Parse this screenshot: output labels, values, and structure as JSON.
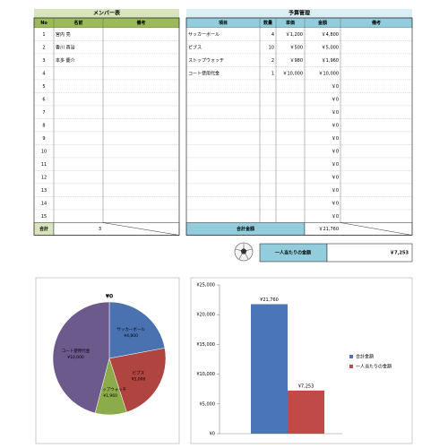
{
  "members": {
    "title": "メンバー表",
    "headers": [
      "No",
      "名前",
      "備考"
    ],
    "rows": [
      {
        "no": 1,
        "name": "宮内 亮"
      },
      {
        "no": 2,
        "name": "香川 真治"
      },
      {
        "no": 3,
        "name": "本多 慶介"
      },
      {
        "no": 4
      },
      {
        "no": 5
      },
      {
        "no": 6
      },
      {
        "no": 7
      },
      {
        "no": 8
      },
      {
        "no": 9
      },
      {
        "no": 10
      },
      {
        "no": 11
      },
      {
        "no": 12
      },
      {
        "no": 13
      },
      {
        "no": 14
      },
      {
        "no": 15
      }
    ],
    "total_label": "合計",
    "total": 3
  },
  "budget": {
    "title": "予算管理",
    "headers": [
      "項目",
      "数量",
      "単価",
      "金額",
      "備考"
    ],
    "rows": [
      {
        "item": "サッカーボール",
        "qty": 4,
        "price": "￥1,200",
        "amount": "￥4,800"
      },
      {
        "item": "ビブス",
        "qty": 10,
        "price": "￥500",
        "amount": "￥5,000"
      },
      {
        "item": "ストップウォッチ",
        "qty": 2,
        "price": "￥980",
        "amount": "￥1,960"
      },
      {
        "item": "コート使用代金",
        "qty": 1,
        "price": "￥10,000",
        "amount": "￥10,000"
      },
      {
        "amount": "￥0"
      },
      {
        "amount": "￥0"
      },
      {
        "amount": "￥0"
      },
      {
        "amount": "￥0"
      },
      {
        "amount": "￥0"
      },
      {
        "amount": "￥0"
      },
      {
        "amount": "￥0"
      },
      {
        "amount": "￥0"
      },
      {
        "amount": "￥0"
      },
      {
        "amount": "￥0"
      },
      {
        "amount": "￥0"
      }
    ],
    "total_label": "合計金額",
    "total": "￥21,760"
  },
  "per_person": {
    "label": "一人当たりの金額",
    "value": "￥7,253"
  },
  "chart_data": [
    {
      "type": "pie",
      "title": "¥0",
      "categories": [
        "サッカーボール",
        "ビブス",
        "ストップウォッチ",
        "コート使用代金"
      ],
      "values": [
        4800,
        5000,
        1960,
        10000
      ],
      "value_labels": [
        "¥4,800",
        "¥5,000",
        "¥1,960",
        "¥10,000"
      ],
      "colors": [
        "#4a72b0",
        "#b04440",
        "#8cab4a",
        "#6d5a8c"
      ]
    },
    {
      "type": "bar",
      "series": [
        {
          "name": "合計金額",
          "color": "#4a76b8",
          "values": [
            21760
          ],
          "value_labels": [
            "¥21,760"
          ]
        },
        {
          "name": "一人当たりの金額",
          "color": "#c04a48",
          "values": [
            7253
          ],
          "value_labels": [
            "¥7,253"
          ]
        }
      ],
      "ylim": [
        0,
        25000
      ],
      "yticks": [
        {
          "value": 0,
          "label": "¥0"
        },
        {
          "value": 5000,
          "label": "¥5,000"
        },
        {
          "value": 10000,
          "label": "¥10,000"
        },
        {
          "value": 15000,
          "label": "¥15,000"
        },
        {
          "value": 20000,
          "label": "¥20,000"
        },
        {
          "value": 25000,
          "label": "¥25,000"
        }
      ],
      "grid": false,
      "legend": "right"
    }
  ]
}
